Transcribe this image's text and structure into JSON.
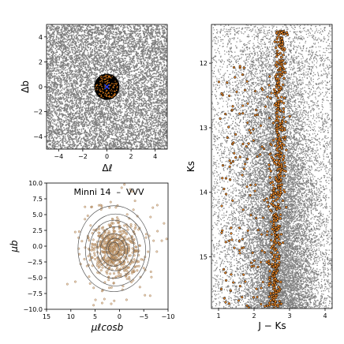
{
  "chart_data": [
    {
      "panel": "spatial",
      "type": "scatter",
      "xlabel": "Δℓ",
      "ylabel": "Δb",
      "xlim": [
        -5,
        5
      ],
      "ylim": [
        -5,
        5
      ],
      "x_ticks": [
        "−4",
        "−2",
        "0",
        "2",
        "4"
      ],
      "y_ticks": [
        "4",
        "2",
        "0",
        "−2",
        "−4"
      ],
      "field_color": "#808080",
      "cluster_region": {
        "center": [
          0,
          0
        ],
        "radius": 1.0,
        "color": "#000000"
      },
      "member_color": "#d4781e",
      "center_marker_color": "#2040ff"
    },
    {
      "panel": "proper_motion",
      "type": "scatter",
      "annotation": "Minni 14  –  VVV",
      "xlabel": "μℓcosb",
      "ylabel": "μb",
      "xlim": [
        15,
        -10
      ],
      "ylim": [
        -10,
        10
      ],
      "x_ticks": [
        "15",
        "10",
        "5",
        "0",
        "−5",
        "−10"
      ],
      "y_ticks": [
        "10.0",
        "7.5",
        "5.0",
        "2.5",
        "0.0",
        "−2.5",
        "−5.0",
        "−7.5",
        "−10.0"
      ],
      "center": [
        1.0,
        -0.5
      ],
      "contour_color": "#555555",
      "point_color": "#d9a877"
    },
    {
      "panel": "cmd",
      "type": "scatter",
      "xlabel": "J − Ks",
      "ylabel": "Ks",
      "xlim": [
        0.8,
        4.2
      ],
      "ylim": [
        15.8,
        11.4
      ],
      "y_inverted": true,
      "x_ticks": [
        "1",
        "2",
        "3",
        "4"
      ],
      "y_ticks": [
        "12",
        "13",
        "14",
        "15"
      ],
      "field_color": "#808080",
      "member_color": "#e8872a",
      "member_edge_color": "#000000",
      "sequence": {
        "x_at_Ks12": 2.75,
        "x_at_Ks15": 2.6
      }
    }
  ]
}
